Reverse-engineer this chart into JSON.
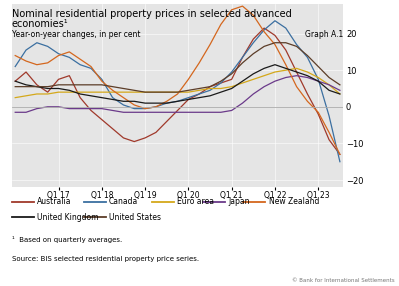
{
  "title_line1": "Nominal residential property prices in selected advanced",
  "title_line2": "economies¹",
  "subtitle": "Year-on-year changes, in per cent",
  "graph_label": "Graph A.1",
  "footnote1": "¹  Based on quarterly averages.",
  "footnote2": "Source: BIS selected residential property price series.",
  "copyright": "© Bank for International Settlements",
  "ylim": [
    -22,
    28
  ],
  "yticks": [
    -20,
    -10,
    0,
    10,
    20
  ],
  "xtick_labels": [
    "Q1 17",
    "Q1 18",
    "Q1 19",
    "Q1 20",
    "Q1 21",
    "Q1 22",
    "Q1 23"
  ],
  "background_color": "#e5e5e5",
  "series": [
    {
      "name": "Australia",
      "color": "#a0392b",
      "data": [
        7.0,
        9.5,
        6.0,
        4.0,
        7.5,
        8.5,
        2.5,
        -1.0,
        -3.5,
        -6.0,
        -8.5,
        -9.5,
        -8.5,
        -7.0,
        -4.0,
        -1.0,
        2.0,
        3.5,
        5.5,
        6.5,
        7.5,
        13.5,
        18.5,
        21.5,
        19.5,
        15.5,
        9.5,
        3.5,
        -2.0,
        -9.0,
        -13.0
      ]
    },
    {
      "name": "Canada",
      "color": "#3b6fa0",
      "data": [
        11.0,
        15.5,
        17.5,
        16.5,
        14.5,
        13.5,
        11.5,
        10.5,
        7.5,
        2.5,
        0.5,
        -0.5,
        -0.5,
        0.0,
        1.0,
        1.5,
        2.5,
        3.5,
        4.5,
        6.5,
        9.5,
        13.5,
        17.5,
        21.0,
        23.5,
        21.5,
        17.0,
        13.5,
        7.5,
        -2.5,
        -15.0
      ]
    },
    {
      "name": "Euro area",
      "color": "#d4a81a",
      "data": [
        2.5,
        3.0,
        3.5,
        3.5,
        4.0,
        4.0,
        4.0,
        4.0,
        4.0,
        4.0,
        4.0,
        4.0,
        4.0,
        4.0,
        4.0,
        4.0,
        4.0,
        4.5,
        5.0,
        5.0,
        5.5,
        6.5,
        7.5,
        8.5,
        9.5,
        10.0,
        10.5,
        9.5,
        8.0,
        6.0,
        3.5
      ]
    },
    {
      "name": "Japan",
      "color": "#6b3a8a",
      "data": [
        -1.5,
        -1.5,
        -0.5,
        0.0,
        0.0,
        -0.5,
        -0.5,
        -0.5,
        -0.5,
        -1.0,
        -1.5,
        -1.5,
        -1.5,
        -1.5,
        -1.5,
        -1.5,
        -1.5,
        -1.5,
        -1.5,
        -1.5,
        -1.0,
        1.0,
        3.5,
        5.5,
        7.0,
        8.0,
        8.5,
        8.0,
        7.0,
        6.0,
        4.5
      ]
    },
    {
      "name": "New Zealand",
      "color": "#d4671e",
      "data": [
        14.0,
        12.5,
        11.5,
        12.0,
        14.0,
        15.0,
        13.0,
        11.0,
        7.0,
        4.5,
        2.5,
        0.5,
        -0.5,
        0.0,
        1.5,
        3.5,
        7.5,
        12.0,
        17.0,
        22.5,
        26.5,
        27.5,
        25.0,
        20.5,
        17.0,
        11.5,
        5.5,
        1.5,
        -1.5,
        -7.0,
        -13.0
      ]
    },
    {
      "name": "United Kingdom",
      "color": "#1a1a1a",
      "data": [
        7.0,
        6.0,
        5.5,
        5.0,
        5.0,
        4.5,
        3.5,
        3.0,
        2.5,
        2.0,
        1.5,
        1.5,
        1.0,
        1.0,
        1.0,
        1.5,
        2.0,
        2.5,
        3.0,
        4.0,
        5.0,
        7.0,
        9.0,
        10.5,
        11.5,
        10.5,
        9.5,
        8.5,
        7.0,
        4.5,
        3.5
      ]
    },
    {
      "name": "United States",
      "color": "#5c3d28",
      "data": [
        5.5,
        5.5,
        5.5,
        5.5,
        6.0,
        6.0,
        6.0,
        6.0,
        6.0,
        5.5,
        5.0,
        4.5,
        4.0,
        4.0,
        4.0,
        4.0,
        4.5,
        5.0,
        5.5,
        7.0,
        9.0,
        12.0,
        14.5,
        16.5,
        17.5,
        17.5,
        16.5,
        14.0,
        11.0,
        8.0,
        6.0
      ]
    }
  ],
  "legend": [
    {
      "label": "Australia",
      "color": "#a0392b"
    },
    {
      "label": "Canada",
      "color": "#3b6fa0"
    },
    {
      "label": "Euro area",
      "color": "#d4a81a"
    },
    {
      "label": "Japan",
      "color": "#6b3a8a"
    },
    {
      "label": "New Zealand",
      "color": "#d4671e"
    },
    {
      "label": "United Kingdom",
      "color": "#1a1a1a"
    },
    {
      "label": "United States",
      "color": "#5c3d28"
    }
  ]
}
